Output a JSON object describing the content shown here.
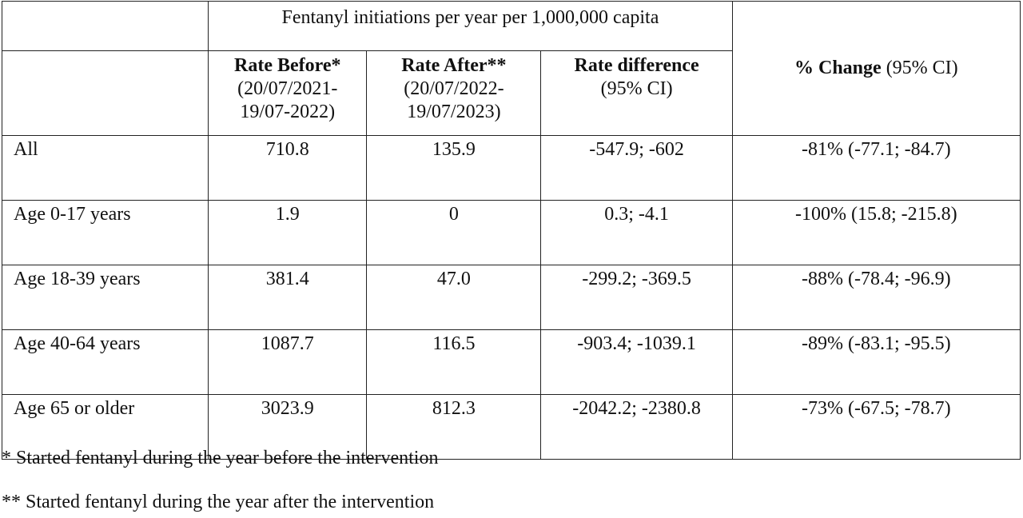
{
  "table": {
    "group_header": "Fentanyl initiations per year per 1,000,000 capita",
    "columns": {
      "rate_before": {
        "label": "Rate Before*",
        "sub_line1": "(20/07/2021-",
        "sub_line2": "19/07-2022)"
      },
      "rate_after": {
        "label": "Rate After**",
        "sub_line1": "(20/07/2022-",
        "sub_line2": "19/07/2023)"
      },
      "rate_difference": {
        "label": "Rate difference",
        "sub_line1": "(95% CI)"
      },
      "pct_change": {
        "label": "% Change",
        "suffix": " (95% CI)"
      }
    },
    "rows": [
      {
        "label": "All",
        "before": "710.8",
        "after": "135.9",
        "diff": "-547.9; -602",
        "change": "-81% (-77.1; -84.7)"
      },
      {
        "label": "Age 0-17 years",
        "before": "1.9",
        "after": "0",
        "diff": "0.3; -4.1",
        "change": "-100% (15.8; -215.8)"
      },
      {
        "label": "Age 18-39 years",
        "before": "381.4",
        "after": "47.0",
        "diff": "-299.2; -369.5",
        "change": "-88% (-78.4; -96.9)"
      },
      {
        "label": "Age 40-64 years",
        "before": "1087.7",
        "after": "116.5",
        "diff": "-903.4; -1039.1",
        "change": "-89% (-83.1; -95.5)"
      },
      {
        "label": "Age 65 or older",
        "before": "3023.9",
        "after": "812.3",
        "diff": "-2042.2; -2380.8",
        "change": "-73% (-67.5; -78.7)"
      }
    ]
  },
  "footnotes": [
    "* Started fentanyl during the year before the intervention",
    "** Started fentanyl during the year after the intervention"
  ]
}
